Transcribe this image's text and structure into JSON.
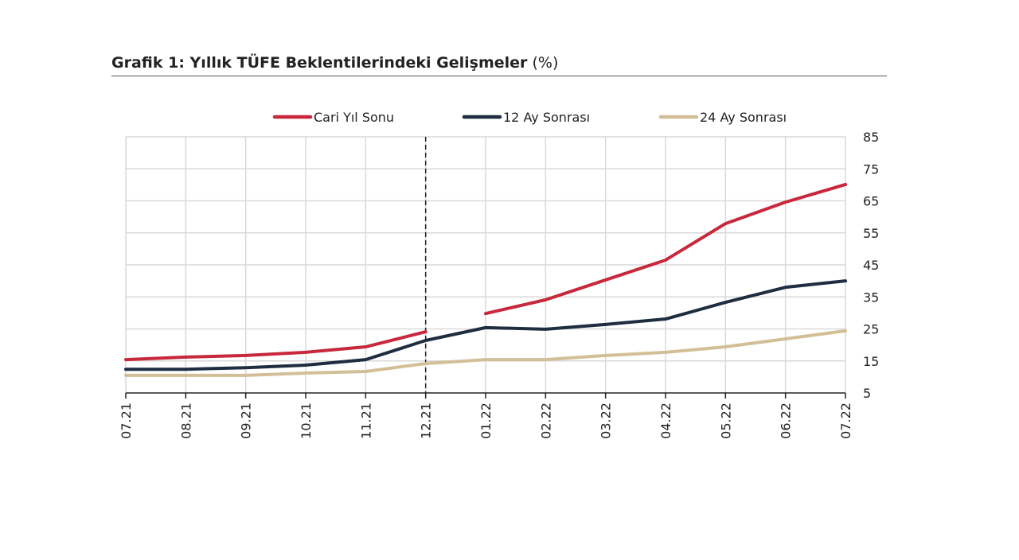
{
  "chart_data": {
    "type": "line",
    "title": "Grafik 1: Yıllık TÜFE Beklentilerindeki Gelişmeler",
    "title_unit": "(%)",
    "categories": [
      "07.21",
      "08.21",
      "09.21",
      "10.21",
      "11.21",
      "12.21",
      "01.22",
      "02.22",
      "03.22",
      "04.22",
      "05.22",
      "06.22",
      "07.22"
    ],
    "y_axis": {
      "side": "right",
      "ylim": [
        5,
        85
      ],
      "ticks": [
        5,
        15,
        25,
        35,
        45,
        55,
        65,
        75,
        85
      ]
    },
    "grid": true,
    "legend_position": "top",
    "vertical_marker": {
      "at": "12.21",
      "style": "dashed"
    },
    "series": [
      {
        "name": "Cari Yıl Sonu",
        "color": "#c8283c",
        "break_after": "12.21",
        "values": [
          15.4,
          16.2,
          16.7,
          17.7,
          19.4,
          24.1,
          29.8,
          34.1,
          40.3,
          46.5,
          57.9,
          64.6,
          70.1
        ]
      },
      {
        "name": "12 Ay Sonrası",
        "color": "#1e2d40",
        "values": [
          12.4,
          12.4,
          12.9,
          13.7,
          15.4,
          21.4,
          25.4,
          24.9,
          26.4,
          28.1,
          33.3,
          38.0,
          40.0
        ]
      },
      {
        "name": "24 Ay Sonrası",
        "color": "#d2bf98",
        "values": [
          10.5,
          10.5,
          10.5,
          11.2,
          11.7,
          14.2,
          15.4,
          15.4,
          16.7,
          17.7,
          19.4,
          21.9,
          24.4
        ]
      }
    ]
  }
}
